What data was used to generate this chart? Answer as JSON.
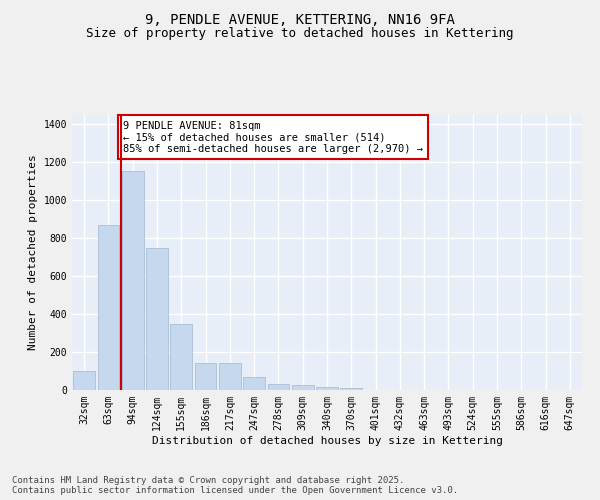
{
  "title1": "9, PENDLE AVENUE, KETTERING, NN16 9FA",
  "title2": "Size of property relative to detached houses in Kettering",
  "xlabel": "Distribution of detached houses by size in Kettering",
  "ylabel": "Number of detached properties",
  "categories": [
    "32sqm",
    "63sqm",
    "94sqm",
    "124sqm",
    "155sqm",
    "186sqm",
    "217sqm",
    "247sqm",
    "278sqm",
    "309sqm",
    "340sqm",
    "370sqm",
    "401sqm",
    "432sqm",
    "463sqm",
    "493sqm",
    "524sqm",
    "555sqm",
    "586sqm",
    "616sqm",
    "647sqm"
  ],
  "values": [
    100,
    870,
    1155,
    750,
    350,
    140,
    140,
    70,
    30,
    25,
    18,
    12,
    0,
    0,
    0,
    0,
    0,
    0,
    0,
    0,
    0
  ],
  "bar_color": "#c5d8ed",
  "bar_edge_color": "#a0b8d0",
  "vline_color": "#cc0000",
  "annotation_text": "9 PENDLE AVENUE: 81sqm\n← 15% of detached houses are smaller (514)\n85% of semi-detached houses are larger (2,970) →",
  "annotation_box_color": "#ffffff",
  "annotation_box_edge_color": "#cc0000",
  "ylim": [
    0,
    1450
  ],
  "yticks": [
    0,
    200,
    400,
    600,
    800,
    1000,
    1200,
    1400
  ],
  "background_color": "#e8eef8",
  "grid_color": "#ffffff",
  "footnote": "Contains HM Land Registry data © Crown copyright and database right 2025.\nContains public sector information licensed under the Open Government Licence v3.0.",
  "title_fontsize": 10,
  "subtitle_fontsize": 9,
  "annotation_fontsize": 7.5,
  "axis_fontsize": 8,
  "tick_fontsize": 7,
  "footnote_fontsize": 6.5
}
